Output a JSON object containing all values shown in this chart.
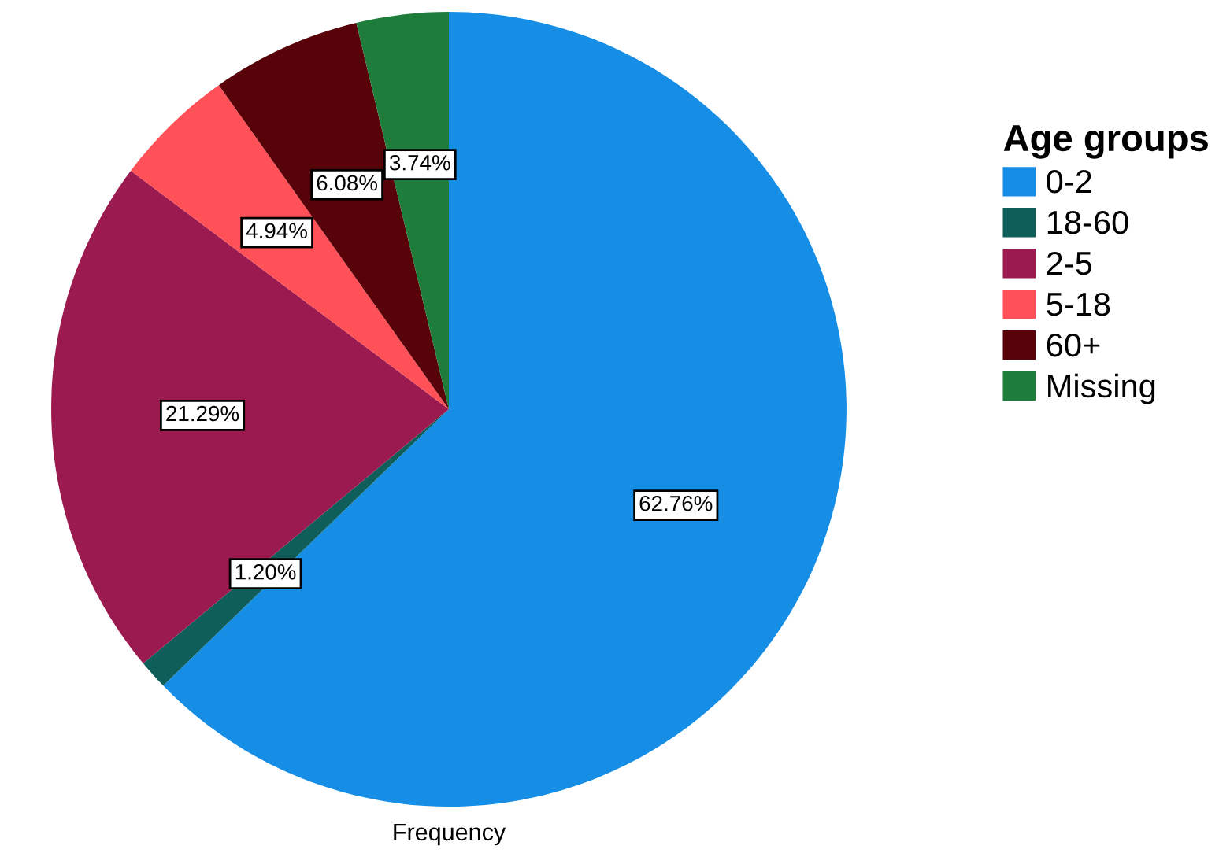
{
  "chart_data": {
    "type": "pie",
    "xlabel": "Frequency",
    "legend_title": "Age groups",
    "legend": "right",
    "categories": [
      "0-2",
      "18-60",
      "2-5",
      "5-18",
      "60+",
      "Missing"
    ],
    "values": [
      62.76,
      1.2,
      21.29,
      4.94,
      6.08,
      3.74
    ],
    "value_labels": [
      "62.76%",
      "1.20%",
      "21.29%",
      "4.94%",
      "6.08%",
      "3.74%"
    ],
    "colors": [
      "#168ee6",
      "#0f5e5a",
      "#9b1a4f",
      "#ff5157",
      "#570309",
      "#1e7d3a"
    ]
  }
}
